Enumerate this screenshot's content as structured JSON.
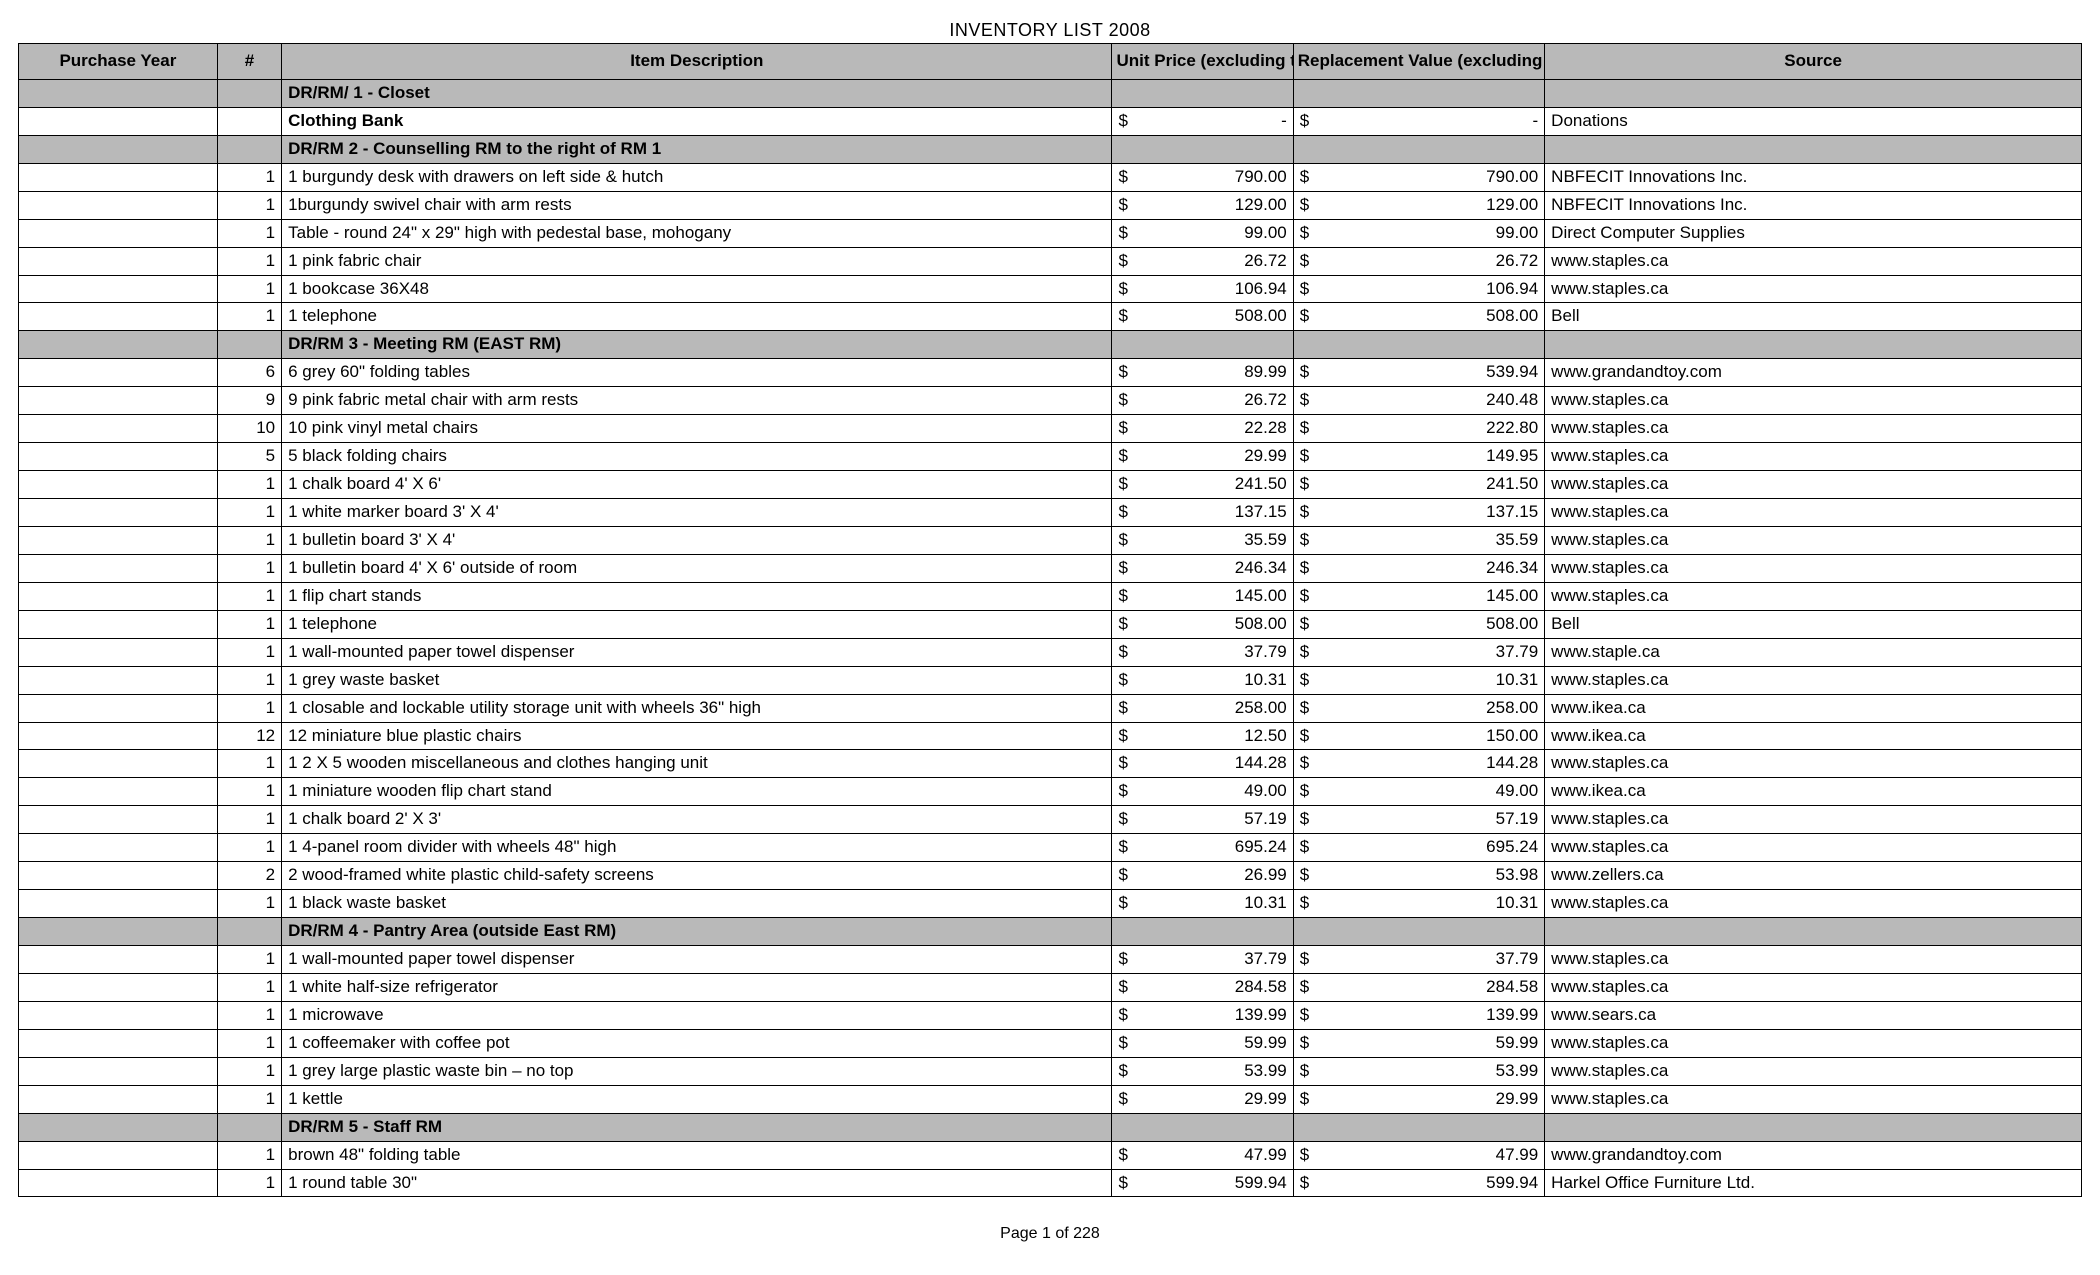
{
  "title": "INVENTORY LIST 2008",
  "footer": "Page 1 of 228",
  "columns": {
    "year": "Purchase Year",
    "qty": "#",
    "desc": "Item Description",
    "unit": "Unit Price (excluding taxes)",
    "repl": "Replacement Value (excluding taxes)",
    "src": "Source"
  },
  "colors": {
    "header_bg": "#b9b9b9",
    "border": "#000000",
    "text": "#000000",
    "bg": "#ffffff"
  },
  "rows": [
    {
      "type": "section",
      "desc": "DR/RM/ 1 - Closet"
    },
    {
      "type": "bold",
      "desc": "Clothing Bank",
      "unit": "-",
      "repl": "-",
      "src": "Donations"
    },
    {
      "type": "section",
      "desc": "DR/RM 2 - Counselling RM to the right of RM 1"
    },
    {
      "qty": "1",
      "desc": "1 burgundy desk with drawers on left side & hutch",
      "unit": "790.00",
      "repl": "790.00",
      "src": "NBFECIT Innovations Inc."
    },
    {
      "qty": "1",
      "desc": "1burgundy swivel chair with arm rests",
      "unit": "129.00",
      "repl": "129.00",
      "src": "NBFECIT Innovations Inc."
    },
    {
      "qty": "1",
      "desc": "Table - round 24\" x 29\" high with pedestal base, mohogany",
      "unit": "99.00",
      "repl": "99.00",
      "src": "Direct Computer Supplies"
    },
    {
      "qty": "1",
      "desc": "1 pink fabric chair",
      "unit": "26.72",
      "repl": "26.72",
      "src": "www.staples.ca"
    },
    {
      "qty": "1",
      "desc": "1 bookcase 36X48",
      "unit": "106.94",
      "repl": "106.94",
      "src": "www.staples.ca"
    },
    {
      "qty": "1",
      "desc": "1 telephone",
      "unit": "508.00",
      "repl": "508.00",
      "src": "Bell"
    },
    {
      "type": "section",
      "desc": "DR/RM 3 - Meeting RM (EAST RM)"
    },
    {
      "qty": "6",
      "desc": "6 grey 60\" folding tables",
      "unit": "89.99",
      "repl": "539.94",
      "src": "www.grandandtoy.com"
    },
    {
      "qty": "9",
      "desc": "9 pink fabric metal chair with arm rests",
      "unit": "26.72",
      "repl": "240.48",
      "src": "www.staples.ca"
    },
    {
      "qty": "10",
      "desc": "10 pink vinyl metal chairs",
      "unit": "22.28",
      "repl": "222.80",
      "src": "www.staples.ca"
    },
    {
      "qty": "5",
      "desc": "5 black folding chairs",
      "unit": "29.99",
      "repl": "149.95",
      "src": "www.staples.ca"
    },
    {
      "qty": "1",
      "desc": "1 chalk board 4' X 6'",
      "unit": "241.50",
      "repl": "241.50",
      "src": "www.staples.ca"
    },
    {
      "qty": "1",
      "desc": "1 white marker board 3' X 4'",
      "unit": "137.15",
      "repl": "137.15",
      "src": "www.staples.ca"
    },
    {
      "qty": "1",
      "desc": "1 bulletin board 3' X 4'",
      "unit": "35.59",
      "repl": "35.59",
      "src": "www.staples.ca"
    },
    {
      "qty": "1",
      "desc": "1 bulletin board 4' X 6' outside of room",
      "unit": "246.34",
      "repl": "246.34",
      "src": "www.staples.ca"
    },
    {
      "qty": "1",
      "desc": "1 flip chart stands",
      "unit": "145.00",
      "repl": "145.00",
      "src": "www.staples.ca"
    },
    {
      "qty": "1",
      "desc": "1 telephone",
      "unit": "508.00",
      "repl": "508.00",
      "src": "Bell"
    },
    {
      "qty": "1",
      "desc": "1 wall-mounted paper towel dispenser",
      "unit": "37.79",
      "repl": "37.79",
      "src": "www.staple.ca"
    },
    {
      "qty": "1",
      "desc": "1 grey waste basket",
      "unit": "10.31",
      "repl": "10.31",
      "src": "www.staples.ca"
    },
    {
      "qty": "1",
      "desc": "1 closable and lockable utility storage unit with wheels 36\" high",
      "unit": "258.00",
      "repl": "258.00",
      "src": "www.ikea.ca"
    },
    {
      "qty": "12",
      "desc": "12 miniature blue plastic chairs",
      "unit": "12.50",
      "repl": "150.00",
      "src": "www.ikea.ca"
    },
    {
      "qty": "1",
      "desc": "1 2 X 5 wooden miscellaneous and clothes hanging unit",
      "unit": "144.28",
      "repl": "144.28",
      "src": "www.staples.ca"
    },
    {
      "qty": "1",
      "desc": "1 miniature wooden flip chart stand",
      "unit": "49.00",
      "repl": "49.00",
      "src": "www.ikea.ca"
    },
    {
      "qty": "1",
      "desc": "1 chalk board 2' X 3'",
      "unit": "57.19",
      "repl": "57.19",
      "src": "www.staples.ca"
    },
    {
      "qty": "1",
      "desc": "1 4-panel room divider with wheels 48\" high",
      "unit": "695.24",
      "repl": "695.24",
      "src": "www.staples.ca"
    },
    {
      "qty": "2",
      "desc": "2 wood-framed white plastic child-safety screens",
      "unit": "26.99",
      "repl": "53.98",
      "src": "www.zellers.ca"
    },
    {
      "qty": "1",
      "desc": "1 black waste basket",
      "unit": "10.31",
      "repl": "10.31",
      "src": "www.staples.ca"
    },
    {
      "type": "section",
      "desc": "DR/RM 4 - Pantry Area (outside East RM)"
    },
    {
      "qty": "1",
      "desc": "1 wall-mounted paper towel dispenser",
      "unit": "37.79",
      "repl": "37.79",
      "src": "www.staples.ca"
    },
    {
      "qty": "1",
      "desc": "1 white half-size refrigerator",
      "unit": "284.58",
      "repl": "284.58",
      "src": "www.staples.ca"
    },
    {
      "qty": "1",
      "desc": "1 microwave",
      "unit": "139.99",
      "repl": "139.99",
      "src": "www.sears.ca"
    },
    {
      "qty": "1",
      "desc": "1 coffeemaker with coffee pot",
      "unit": "59.99",
      "repl": "59.99",
      "src": "www.staples.ca"
    },
    {
      "qty": "1",
      "desc": "1 grey large plastic waste bin – no top",
      "unit": "53.99",
      "repl": "53.99",
      "src": "www.staples.ca"
    },
    {
      "qty": "1",
      "desc": "1 kettle",
      "unit": "29.99",
      "repl": "29.99",
      "src": "www.staples.ca"
    },
    {
      "type": "section",
      "desc": "DR/RM 5 - Staff RM"
    },
    {
      "qty": "1",
      "desc": "brown 48\" folding table",
      "unit": "47.99",
      "repl": "47.99",
      "src": "www.grandandtoy.com"
    },
    {
      "qty": "1",
      "desc": "1 round table 30\"",
      "unit": "599.94",
      "repl": "599.94",
      "src": "Harkel Office Furniture Ltd."
    }
  ]
}
